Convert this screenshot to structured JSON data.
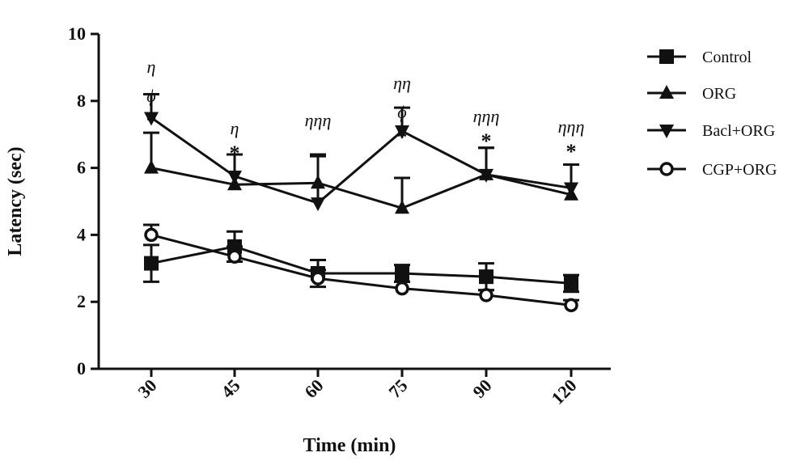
{
  "chart_data": {
    "type": "line",
    "xlabel": "Time (min)",
    "ylabel": "Latency (sec)",
    "categories": [
      "30",
      "45",
      "60",
      "75",
      "90",
      "120"
    ],
    "ylim": [
      0,
      10
    ],
    "yticks": [
      "0",
      "2",
      "4",
      "6",
      "8",
      "10"
    ],
    "grid": false,
    "legend_position": "right",
    "series": [
      {
        "name": "Control",
        "marker": "square",
        "values": [
          3.15,
          3.65,
          2.85,
          2.85,
          2.75,
          2.55
        ],
        "errors": [
          0.55,
          0.45,
          0.4,
          0.25,
          0.4,
          0.25
        ],
        "error_dir": "both"
      },
      {
        "name": "ORG",
        "marker": "triangle-up",
        "values": [
          6.0,
          5.5,
          5.55,
          4.8,
          5.8,
          5.2
        ],
        "errors": [
          1.05,
          0.0,
          0.8,
          0.9,
          0.8,
          0.9
        ],
        "error_dir": "up"
      },
      {
        "name": "Bacl+ORG",
        "marker": "triangle-down",
        "values": [
          7.5,
          5.75,
          4.95,
          7.1,
          5.8,
          5.4
        ],
        "errors": [
          0.7,
          0.65,
          1.45,
          0.7,
          0.8,
          0.7
        ],
        "error_dir": "up"
      },
      {
        "name": "CGP+ORG",
        "marker": "circle-open",
        "values": [
          4.0,
          3.35,
          2.7,
          2.4,
          2.2,
          1.9
        ],
        "errors": [
          0.3,
          0.3,
          0.25,
          0.2,
          0.15,
          0.15
        ],
        "error_dir": "up"
      }
    ],
    "annotations": [
      {
        "category": "30",
        "lines": [
          "η",
          "ϕ"
        ],
        "star": "*"
      },
      {
        "category": "45",
        "lines": [
          "η"
        ],
        "star": "*"
      },
      {
        "category": "60",
        "lines": [
          "ηηη"
        ],
        "star": ""
      },
      {
        "category": "75",
        "lines": [
          "ηη",
          "ϕ"
        ],
        "star": "*"
      },
      {
        "category": "90",
        "lines": [
          "ηηη"
        ],
        "star": "*"
      },
      {
        "category": "120",
        "lines": [
          "ηηη"
        ],
        "star": "*"
      }
    ]
  }
}
